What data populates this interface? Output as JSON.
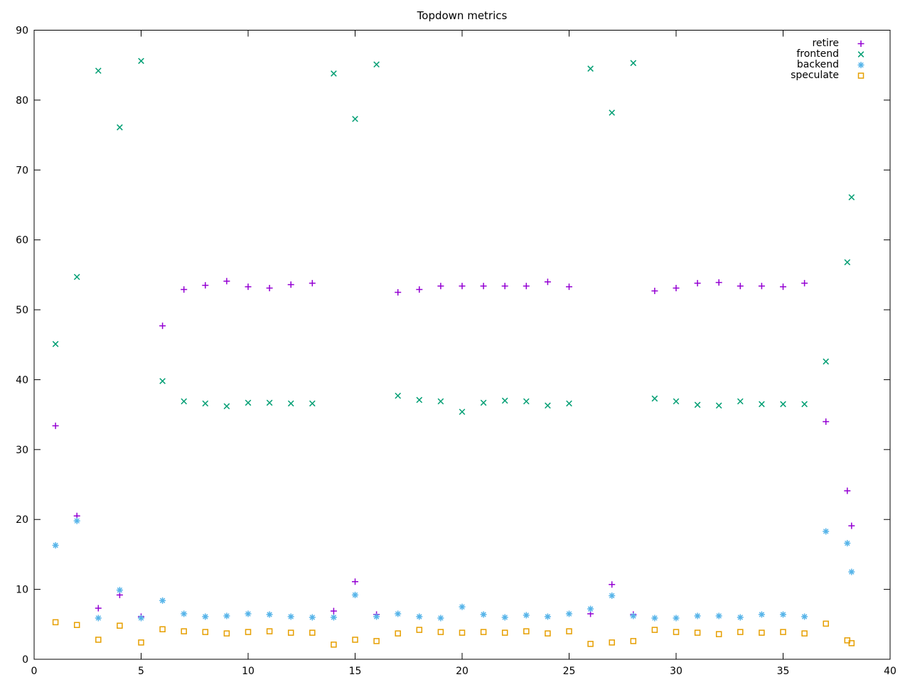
{
  "window": {
    "background": "#ffffff",
    "axis_color": "#000000"
  },
  "chart_data": {
    "type": "scatter",
    "title": "Topdown metrics",
    "xlabel": "",
    "ylabel": "",
    "xlim": [
      0,
      40
    ],
    "ylim": [
      0,
      90
    ],
    "xtick_step": 5,
    "ytick_step": 10,
    "grid": false,
    "legend_position": "top-right-inside",
    "x": [
      1,
      2,
      3,
      4,
      5,
      6,
      7,
      8,
      9,
      10,
      11,
      12,
      13,
      14,
      15,
      16,
      17,
      18,
      19,
      20,
      21,
      22,
      23,
      24,
      25,
      26,
      27,
      28,
      29,
      30,
      31,
      32,
      33,
      34,
      35,
      36,
      37,
      38,
      38.2
    ],
    "series": [
      {
        "name": "retire",
        "marker": "plus",
        "color": "#9400D3",
        "values": [
          33.4,
          20.5,
          7.3,
          9.2,
          6.1,
          47.7,
          52.9,
          53.5,
          54.1,
          53.3,
          53.1,
          53.6,
          53.8,
          6.9,
          11.1,
          6.4,
          52.5,
          52.9,
          53.4,
          53.4,
          53.4,
          53.4,
          53.4,
          54.0,
          53.3,
          6.5,
          10.7,
          6.4,
          52.7,
          53.1,
          53.8,
          53.9,
          53.4,
          53.4,
          53.3,
          53.8,
          34.0,
          24.1,
          19.1
        ]
      },
      {
        "name": "frontend",
        "marker": "cross",
        "color": "#009E73",
        "values": [
          45.1,
          54.7,
          84.2,
          76.1,
          85.6,
          39.8,
          36.9,
          36.6,
          36.2,
          36.7,
          36.7,
          36.6,
          36.6,
          83.8,
          77.3,
          85.1,
          37.7,
          37.1,
          36.9,
          35.4,
          36.7,
          37.0,
          36.9,
          36.3,
          36.6,
          84.5,
          78.2,
          85.3,
          37.3,
          36.9,
          36.4,
          36.3,
          36.9,
          36.5,
          36.5,
          36.5,
          42.6,
          56.8,
          66.1
        ]
      },
      {
        "name": "backend",
        "marker": "asterisk",
        "color": "#56B4E9",
        "values": [
          16.3,
          19.8,
          5.9,
          9.9,
          5.9,
          8.4,
          6.5,
          6.1,
          6.2,
          6.5,
          6.4,
          6.1,
          6.0,
          6.0,
          9.2,
          6.1,
          6.5,
          6.1,
          5.9,
          7.5,
          6.4,
          6.0,
          6.3,
          6.1,
          6.5,
          7.2,
          9.1,
          6.2,
          5.9,
          5.9,
          6.2,
          6.2,
          6.0,
          6.4,
          6.4,
          6.1,
          18.3,
          16.6,
          12.5
        ]
      },
      {
        "name": "speculate",
        "marker": "square",
        "color": "#E69F00",
        "values": [
          5.3,
          4.9,
          2.8,
          4.8,
          2.4,
          4.3,
          4.0,
          3.9,
          3.7,
          3.9,
          4.0,
          3.8,
          3.8,
          2.1,
          2.8,
          2.6,
          3.7,
          4.2,
          3.9,
          3.8,
          3.9,
          3.8,
          4.0,
          3.7,
          4.0,
          2.2,
          2.4,
          2.6,
          4.2,
          3.9,
          3.8,
          3.6,
          3.9,
          3.8,
          3.9,
          3.7,
          5.1,
          2.7,
          2.3
        ]
      }
    ]
  }
}
